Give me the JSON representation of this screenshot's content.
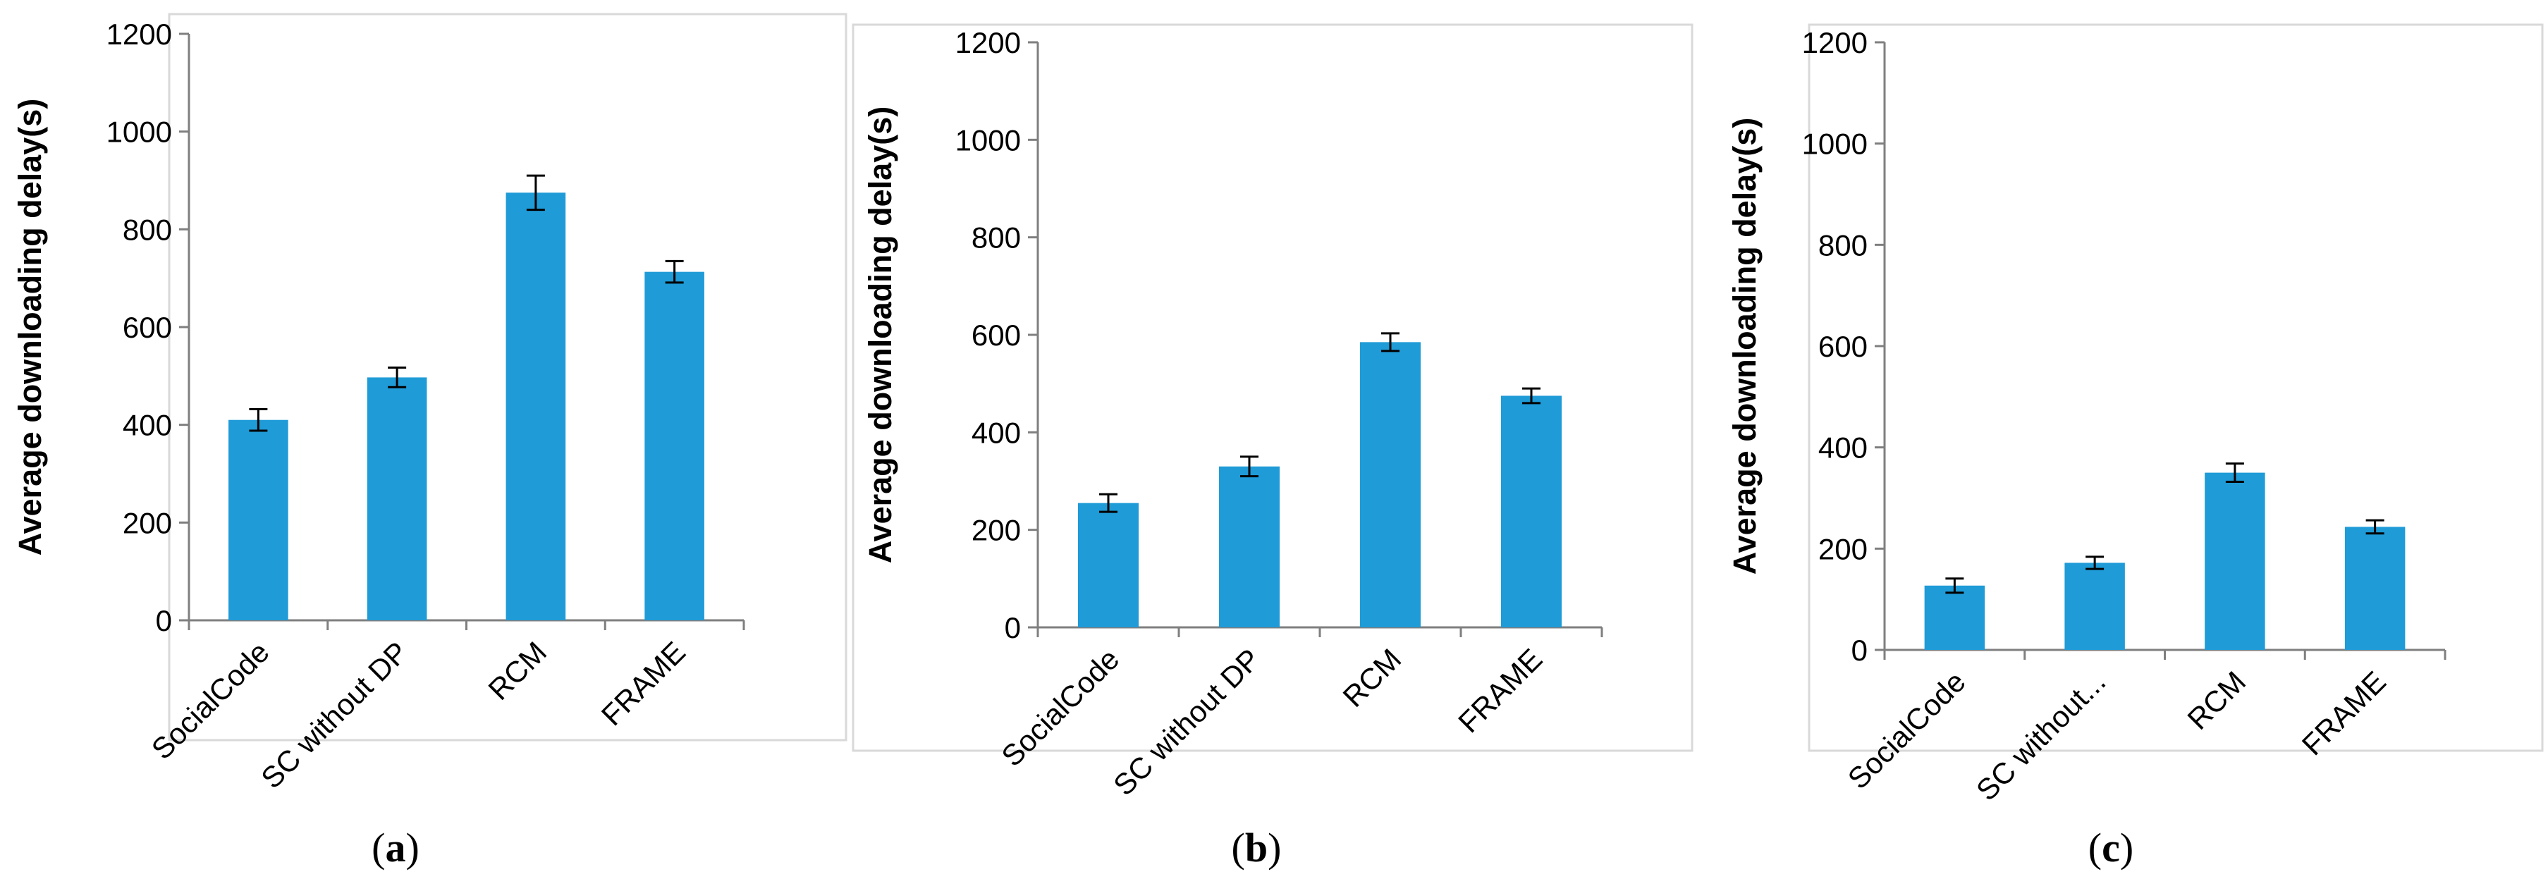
{
  "colors": {
    "bar": "#1f9bd7",
    "axis": "#7f7f7f",
    "error_bar": "#000000",
    "frame": "#d9d9d9"
  },
  "panel_labels": [
    {
      "open": "(",
      "letter": "a",
      "close": ")"
    },
    {
      "open": "(",
      "letter": "b",
      "close": ")"
    },
    {
      "open": "(",
      "letter": "c",
      "close": ")"
    }
  ],
  "chart_data": [
    {
      "type": "bar",
      "title": "",
      "xlabel": "",
      "ylabel": "Average downloading delay(s)",
      "ylim": [
        0,
        1200
      ],
      "yticks": [
        0,
        200,
        400,
        600,
        800,
        1000,
        1200
      ],
      "categories": [
        "SocialCode",
        "SC without DP",
        "RCM",
        "FRAME"
      ],
      "values": [
        410,
        497,
        875,
        713
      ],
      "error": [
        22,
        20,
        35,
        22
      ],
      "grid": false
    },
    {
      "type": "bar",
      "title": "",
      "xlabel": "",
      "ylabel": "Average downloading delay(s)",
      "ylim": [
        0,
        1200
      ],
      "yticks": [
        0,
        200,
        400,
        600,
        800,
        1000,
        1200
      ],
      "categories": [
        "SocialCode",
        "SC without DP",
        "RCM",
        "FRAME"
      ],
      "values": [
        255,
        330,
        585,
        475
      ],
      "error": [
        18,
        20,
        18,
        15
      ],
      "grid": false
    },
    {
      "type": "bar",
      "title": "",
      "xlabel": "",
      "ylabel": "Average downloading delay(s)",
      "ylim": [
        0,
        1200
      ],
      "yticks": [
        0,
        200,
        400,
        600,
        800,
        1000,
        1200
      ],
      "categories": [
        "SocialCode",
        "SC without...",
        "RCM",
        "FRAME"
      ],
      "values": [
        127,
        172,
        350,
        243
      ],
      "error": [
        14,
        12,
        18,
        13
      ],
      "grid": false
    }
  ]
}
